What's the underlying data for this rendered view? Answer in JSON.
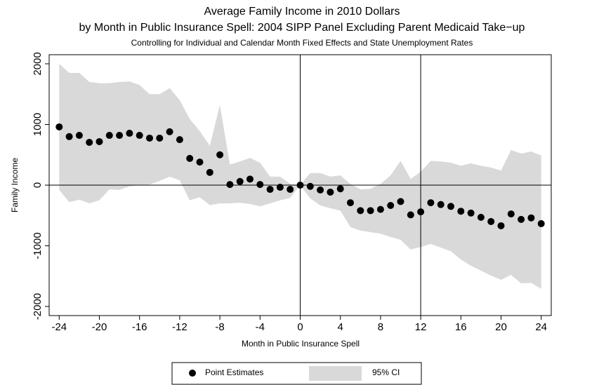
{
  "chart_data": {
    "type": "scatter",
    "title": [
      "Average Family Income in 2010 Dollars",
      "by Month in Public Insurance Spell: 2004 SIPP Panel Excluding Parent Medicaid Take−up"
    ],
    "subtitle": "Controlling for Individual and Calendar Month Fixed Effects and State Unemployment Rates",
    "x_label": "Month in Public Insurance Spell",
    "y_label": "Family Income",
    "x": [
      -24,
      -23,
      -22,
      -21,
      -20,
      -19,
      -18,
      -17,
      -16,
      -15,
      -14,
      -13,
      -12,
      -11,
      -10,
      -9,
      -8,
      -7,
      -6,
      -5,
      -4,
      -3,
      -2,
      -1,
      0,
      1,
      2,
      3,
      4,
      5,
      6,
      7,
      8,
      9,
      10,
      11,
      12,
      13,
      14,
      15,
      16,
      17,
      18,
      19,
      20,
      21,
      22,
      23,
      24
    ],
    "series": [
      {
        "name": "Point Estimates",
        "color": "#000000",
        "values": [
          960,
          800,
          820,
          705,
          717,
          820,
          820,
          855,
          820,
          775,
          775,
          880,
          750,
          440,
          380,
          210,
          500,
          10,
          60,
          100,
          10,
          -70,
          -35,
          -70,
          0,
          -20,
          -80,
          -115,
          -60,
          -290,
          -420,
          -420,
          -400,
          -335,
          -270,
          -490,
          -440,
          -290,
          -320,
          -350,
          -430,
          -460,
          -530,
          -600,
          -670,
          -475,
          -565,
          -540,
          -635
        ]
      },
      {
        "name": "95% CI",
        "color": "#d9d9d9",
        "upper": [
          2000,
          1850,
          1850,
          1700,
          1680,
          1680,
          1700,
          1710,
          1650,
          1500,
          1500,
          1600,
          1400,
          1090,
          890,
          650,
          1320,
          340,
          390,
          450,
          370,
          140,
          140,
          20,
          0,
          200,
          200,
          140,
          160,
          20,
          -70,
          -60,
          20,
          160,
          400,
          100,
          220,
          400,
          390,
          370,
          320,
          360,
          320,
          290,
          240,
          580,
          520,
          555,
          490
        ],
        "lower": [
          -80,
          -280,
          -240,
          -300,
          -250,
          -70,
          -80,
          -20,
          0,
          10,
          70,
          140,
          80,
          -250,
          -200,
          -330,
          -300,
          -300,
          -290,
          -310,
          -350,
          -300,
          -250,
          -210,
          0,
          -220,
          -335,
          -380,
          -420,
          -690,
          -750,
          -775,
          -800,
          -855,
          -900,
          -1060,
          -1020,
          -970,
          -1030,
          -1090,
          -1225,
          -1330,
          -1410,
          -1490,
          -1560,
          -1480,
          -1620,
          -1610,
          -1710
        ]
      }
    ],
    "xlim": [
      -25,
      25
    ],
    "ylim": [
      -2150,
      2150
    ],
    "xticks": [
      -24,
      -20,
      -16,
      -12,
      -8,
      -4,
      0,
      4,
      8,
      12,
      16,
      20,
      24
    ],
    "yticks": [
      -2000,
      -1000,
      0,
      1000,
      2000
    ],
    "vlines": [
      0,
      12
    ],
    "hline": 0,
    "legend": "bottom"
  }
}
